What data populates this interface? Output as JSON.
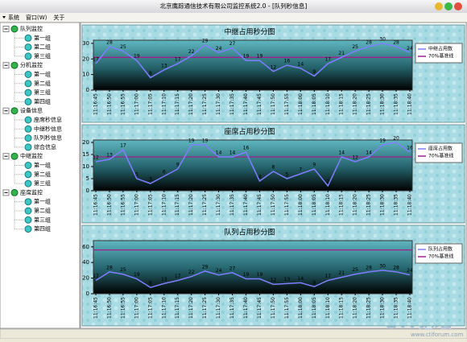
{
  "window_title": "北京鹰踪通信技术有限公司监控系统2.0 - [队列秒信息]",
  "menu": [
    "系统",
    "窗口(W)",
    "关于"
  ],
  "tree": [
    {
      "label": "队列监控",
      "children": [
        "第一组",
        "第二组",
        "第三组"
      ]
    },
    {
      "label": "分机监控",
      "children": [
        "第一组",
        "第二组",
        "第三组",
        "第四组"
      ]
    },
    {
      "label": "设备信息",
      "children": [
        "座席秒信息",
        "中继秒信息",
        "队列秒信息",
        "综合信息"
      ]
    },
    {
      "label": "中继监控",
      "children": [
        "第一组",
        "第二组",
        "第三组"
      ]
    },
    {
      "label": "座席监控",
      "children": [
        "第一组",
        "第二组",
        "第三组",
        "第四组"
      ]
    }
  ],
  "watermark": {
    "logo": "CTI论坛",
    "url": "www.ctiforum.com"
  },
  "chart_data": [
    {
      "type": "line",
      "title": "中继占用秒分图",
      "categories": [
        "11:16:45",
        "11:16:50",
        "11:16:55",
        "11:17:00",
        "11:17:05",
        "11:17:10",
        "11:17:15",
        "11:17:20",
        "11:17:25",
        "11:17:30",
        "11:17:35",
        "11:17:40",
        "11:17:45",
        "11:17:50",
        "11:17:55",
        "11:18:00",
        "11:18:05",
        "11:18:10",
        "11:18:15",
        "11:18:20",
        "11:18:25",
        "11:18:30",
        "11:18:35",
        "11:18:40"
      ],
      "series": [
        {
          "name": "中继占用数",
          "color": "#7f7fff",
          "values": [
            17,
            28,
            25,
            19,
            8,
            13,
            17,
            22,
            29,
            24,
            27,
            19,
            19,
            12,
            16,
            14,
            9,
            17,
            21,
            25,
            28,
            30,
            28,
            24
          ]
        }
      ],
      "reference": {
        "name": "70%基准线",
        "color": "#a0208f",
        "value": 21
      },
      "ylim": [
        0,
        32
      ],
      "yticks": [
        0,
        10,
        20,
        30
      ]
    },
    {
      "type": "line",
      "title": "座席占用秒分图",
      "categories": [
        "11:16:45",
        "11:16:50",
        "11:16:55",
        "11:17:00",
        "11:17:05",
        "11:17:10",
        "11:17:15",
        "11:17:20",
        "11:17:25",
        "11:17:30",
        "11:17:35",
        "11:17:40",
        "11:17:45",
        "11:17:50",
        "11:17:55",
        "11:18:00",
        "11:18:05",
        "11:18:10",
        "11:18:15",
        "11:18:20",
        "11:18:25",
        "11:18:30",
        "11:18:35",
        "11:18:40"
      ],
      "series": [
        {
          "name": "座席占用数",
          "color": "#7f7fff",
          "values": [
            12,
            13,
            17,
            5,
            3,
            6,
            9,
            19,
            19,
            14,
            14,
            16,
            4,
            8,
            5,
            7,
            9,
            2,
            14,
            12,
            14,
            19,
            20,
            16
          ]
        }
      ],
      "reference": {
        "name": "70%基准线",
        "color": "#a0208f",
        "value": 14
      },
      "ylim": [
        0,
        21
      ],
      "yticks": [
        0,
        5,
        10,
        15,
        20
      ]
    },
    {
      "type": "line",
      "title": "队列占用秒分图",
      "categories": [
        "11:16:45",
        "11:16:50",
        "11:16:55",
        "11:17:00",
        "11:17:05",
        "11:17:10",
        "11:17:15",
        "11:17:20",
        "11:17:25",
        "11:17:30",
        "11:17:35",
        "11:17:40",
        "11:17:45",
        "11:17:50",
        "11:17:55",
        "11:18:00",
        "11:18:05",
        "11:18:10",
        "11:18:15",
        "11:18:20",
        "11:18:25",
        "11:18:30",
        "11:18:35",
        "11:18:40"
      ],
      "series": [
        {
          "name": "队列占用数",
          "color": "#7f7fff",
          "values": [
            17,
            28,
            25,
            19,
            8,
            13,
            17,
            22,
            29,
            24,
            27,
            19,
            19,
            12,
            13,
            14,
            9,
            17,
            21,
            25,
            28,
            30,
            28,
            24
          ]
        }
      ],
      "reference": {
        "name": "70%基准线",
        "color": "#a0208f",
        "value": 56
      },
      "ylim": [
        0,
        68
      ],
      "yticks": [
        0,
        20,
        40,
        60
      ]
    }
  ]
}
